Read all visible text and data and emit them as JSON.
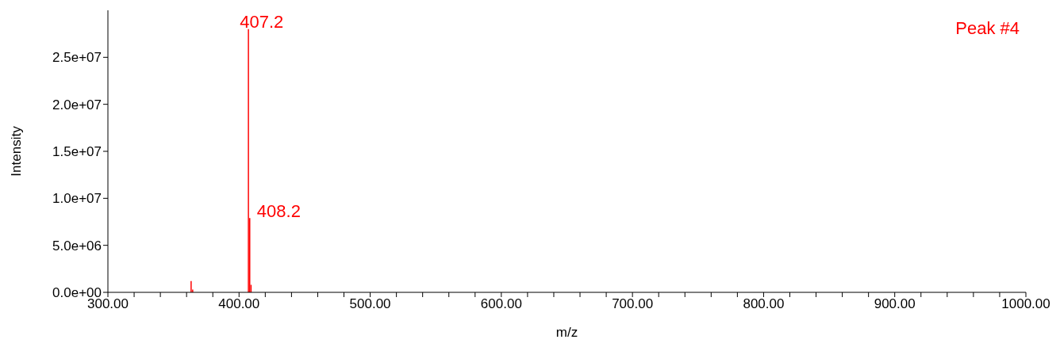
{
  "chart_data": {
    "type": "bar",
    "xlabel": "m/z",
    "ylabel": "Intensity",
    "x": [
      363.5,
      364.7,
      407.2,
      408.2,
      409.2
    ],
    "series": [
      {
        "color": "#ff0000",
        "values": [
          1200000,
          300000,
          28000000,
          7900000,
          800000
        ]
      }
    ],
    "xlim": [
      300,
      1000
    ],
    "xticks": [
      {
        "value": 300,
        "label": "300.00"
      },
      {
        "value": 320,
        "label": null
      },
      {
        "value": 340,
        "label": null
      },
      {
        "value": 360,
        "label": null
      },
      {
        "value": 380,
        "label": null
      },
      {
        "value": 400,
        "label": "400.00"
      },
      {
        "value": 420,
        "label": null
      },
      {
        "value": 440,
        "label": null
      },
      {
        "value": 460,
        "label": null
      },
      {
        "value": 480,
        "label": null
      },
      {
        "value": 500,
        "label": "500.00"
      },
      {
        "value": 520,
        "label": null
      },
      {
        "value": 540,
        "label": null
      },
      {
        "value": 560,
        "label": null
      },
      {
        "value": 580,
        "label": null
      },
      {
        "value": 600,
        "label": "600.00"
      },
      {
        "value": 620,
        "label": null
      },
      {
        "value": 640,
        "label": null
      },
      {
        "value": 660,
        "label": null
      },
      {
        "value": 680,
        "label": null
      },
      {
        "value": 700,
        "label": "700.00"
      },
      {
        "value": 720,
        "label": null
      },
      {
        "value": 740,
        "label": null
      },
      {
        "value": 760,
        "label": null
      },
      {
        "value": 780,
        "label": null
      },
      {
        "value": 800,
        "label": "800.00"
      },
      {
        "value": 820,
        "label": null
      },
      {
        "value": 840,
        "label": null
      },
      {
        "value": 860,
        "label": null
      },
      {
        "value": 880,
        "label": null
      },
      {
        "value": 900,
        "label": "900.00"
      },
      {
        "value": 920,
        "label": null
      },
      {
        "value": 940,
        "label": null
      },
      {
        "value": 960,
        "label": null
      },
      {
        "value": 980,
        "label": null
      },
      {
        "value": 1000,
        "label": "1000.00"
      }
    ],
    "ylim": [
      0,
      30000000
    ],
    "yticks": [
      {
        "value": 0,
        "label": "0.0e+00"
      },
      {
        "value": 5000000,
        "label": "5.0e+06"
      },
      {
        "value": 10000000,
        "label": "1.0e+07"
      },
      {
        "value": 15000000,
        "label": "1.5e+07"
      },
      {
        "value": 20000000,
        "label": "2.0e+07"
      },
      {
        "value": 25000000,
        "label": "2.5e+07"
      }
    ],
    "grid": false,
    "legend": false,
    "annotations": [
      {
        "text": "407.2",
        "x": 407.2,
        "y": 28000000
      },
      {
        "text": "408.2",
        "x": 408.2,
        "y": 7900000
      },
      "Peak #4"
    ]
  }
}
